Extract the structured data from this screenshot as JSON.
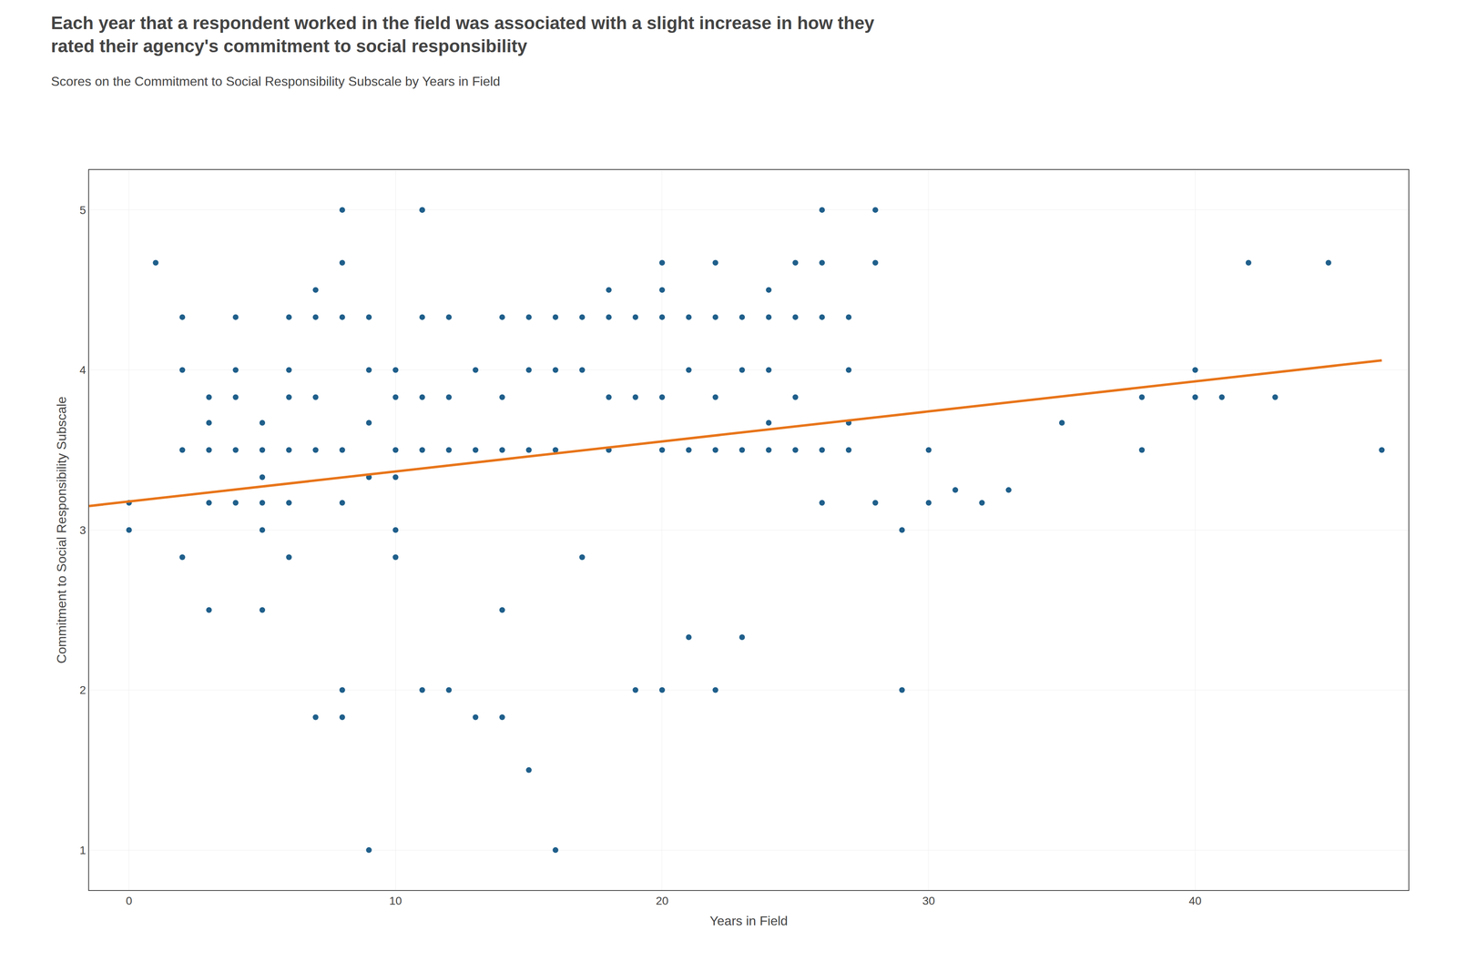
{
  "chart_data": {
    "type": "scatter",
    "title": "Each year that a respondent worked in the field was associated with a slight increase in how they\nrated their agency's commitment to social responsibility",
    "subtitle": "Scores on the Commitment to Social Responsibility Subscale by Years in Field",
    "xlabel": "Years in Field",
    "ylabel": "Commitment to Social Responsibility Subscale",
    "xlim": [
      -1.5,
      48
    ],
    "ylim": [
      0.75,
      5.25
    ],
    "xticks": [
      0,
      10,
      20,
      30,
      40
    ],
    "yticks": [
      1,
      2,
      3,
      4,
      5
    ],
    "grid": true,
    "series": [
      {
        "type": "scatter",
        "marker": "circle",
        "color": "#1f5f8b",
        "x": [
          0,
          0,
          1,
          2,
          2,
          2,
          2,
          3,
          3,
          3,
          3,
          3,
          4,
          4,
          4,
          4,
          4,
          5,
          5,
          5,
          5,
          5,
          5,
          6,
          6,
          6,
          6,
          6,
          6,
          7,
          7,
          7,
          7,
          7,
          8,
          8,
          8,
          8,
          8,
          8,
          8,
          9,
          9,
          9,
          9,
          9,
          10,
          10,
          10,
          10,
          10,
          10,
          11,
          11,
          11,
          11,
          11,
          11,
          12,
          12,
          12,
          12,
          13,
          13,
          13,
          14,
          14,
          14,
          14,
          14,
          15,
          15,
          15,
          15,
          16,
          16,
          16,
          16,
          17,
          17,
          17,
          18,
          18,
          18,
          18,
          19,
          19,
          19,
          20,
          20,
          20,
          20,
          20,
          20,
          21,
          21,
          21,
          21,
          22,
          22,
          22,
          22,
          22,
          23,
          23,
          23,
          23,
          24,
          24,
          24,
          24,
          24,
          25,
          25,
          25,
          25,
          26,
          26,
          26,
          26,
          26,
          27,
          27,
          27,
          27,
          28,
          28,
          28,
          29,
          29,
          30,
          30,
          31,
          32,
          33,
          35,
          38,
          38,
          40,
          40,
          41,
          42,
          43,
          45,
          47
        ],
        "values": [
          3.0,
          3.17,
          4.67,
          4.33,
          4.0,
          3.5,
          2.83,
          3.83,
          3.67,
          3.5,
          3.17,
          2.5,
          4.33,
          4.0,
          3.83,
          3.5,
          3.17,
          3.67,
          3.5,
          3.33,
          3.17,
          3.0,
          2.5,
          4.33,
          4.0,
          3.83,
          3.5,
          3.17,
          2.83,
          4.5,
          4.33,
          3.83,
          3.5,
          1.83,
          5.0,
          4.67,
          4.33,
          3.5,
          3.17,
          2.0,
          1.83,
          4.33,
          4.0,
          3.67,
          3.33,
          1.0,
          4.0,
          3.83,
          3.5,
          3.33,
          3.0,
          2.83,
          5.0,
          5.0,
          4.33,
          3.83,
          3.5,
          2.0,
          4.33,
          3.83,
          3.5,
          2.0,
          4.0,
          3.5,
          1.83,
          4.33,
          3.83,
          3.5,
          2.5,
          1.83,
          4.33,
          4.0,
          3.5,
          1.5,
          4.33,
          4.0,
          3.5,
          1.0,
          4.33,
          4.0,
          2.83,
          4.5,
          4.33,
          3.83,
          3.5,
          4.33,
          3.83,
          2.0,
          4.67,
          4.5,
          4.33,
          3.83,
          3.5,
          2.0,
          4.33,
          4.0,
          3.5,
          2.33,
          4.67,
          4.33,
          3.83,
          3.5,
          2.0,
          4.33,
          4.0,
          3.5,
          2.33,
          4.5,
          4.33,
          4.0,
          3.67,
          3.5,
          4.67,
          4.33,
          3.83,
          3.5,
          5.0,
          4.67,
          4.33,
          3.5,
          3.17,
          4.33,
          4.0,
          3.67,
          3.5,
          5.0,
          4.67,
          3.17,
          3.0,
          2.0,
          3.5,
          3.17,
          3.25,
          3.17,
          3.25,
          3.67,
          3.83,
          3.5,
          4.0,
          3.83,
          3.83,
          4.67,
          3.83,
          4.67,
          3.5
        ]
      },
      {
        "type": "line",
        "line_style": "solid",
        "color": "#E8751A",
        "x": [
          -1.5,
          47
        ],
        "values": [
          3.15,
          4.06
        ]
      }
    ]
  }
}
